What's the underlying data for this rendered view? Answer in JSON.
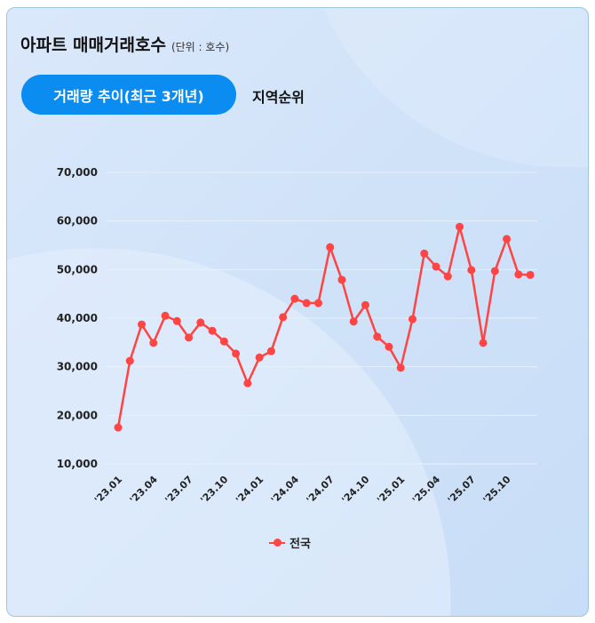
{
  "header": {
    "title": "아파트 매매거래호수",
    "unit": "(단위 : 호수)"
  },
  "tabs": [
    {
      "label": "거래량 추이(최근 3개년)",
      "active": true
    },
    {
      "label": "지역순위",
      "active": false
    }
  ],
  "colors": {
    "accent": "#0a8cf0",
    "series": "#ff4444"
  },
  "chart_data": {
    "type": "line",
    "title": "아파트 매매거래호수",
    "xlabel": "",
    "ylabel": "",
    "ylim": [
      10000,
      70000
    ],
    "yticks": [
      "10,000",
      "20,000",
      "30,000",
      "40,000",
      "50,000",
      "60,000",
      "70,000"
    ],
    "ytick_values": [
      10000,
      20000,
      30000,
      40000,
      50000,
      60000,
      70000
    ],
    "xtick_labels": [
      "'23.01",
      "'23.04",
      "'23.07",
      "'23.10",
      "'24.01",
      "'24.04",
      "'24.07",
      "'24.10",
      "'25.01",
      "'25.04",
      "'25.07",
      "'25.10"
    ],
    "grid": true,
    "legend_position": "bottom",
    "x": [
      "23.01",
      "23.02",
      "23.03",
      "23.04",
      "23.05",
      "23.06",
      "23.07",
      "23.08",
      "23.09",
      "23.10",
      "23.11",
      "23.12",
      "24.01",
      "24.02",
      "24.03",
      "24.04",
      "24.05",
      "24.06",
      "24.07",
      "24.08",
      "24.09",
      "24.10",
      "24.11",
      "24.12",
      "25.01",
      "25.02",
      "25.03",
      "25.04",
      "25.05",
      "25.06",
      "25.07",
      "25.08",
      "25.09",
      "25.10",
      "25.11",
      "25.12"
    ],
    "series": [
      {
        "name": "전국",
        "values": [
          17500,
          31200,
          38700,
          34900,
          40500,
          39400,
          36000,
          39100,
          37400,
          35200,
          32700,
          26600,
          31900,
          33200,
          40200,
          44000,
          43100,
          43100,
          54600,
          47900,
          39300,
          42700,
          36200,
          34100,
          29800,
          39800,
          53300,
          50600,
          48600,
          58800,
          49900,
          34900,
          49700,
          56300,
          49000,
          48900
        ]
      }
    ]
  }
}
